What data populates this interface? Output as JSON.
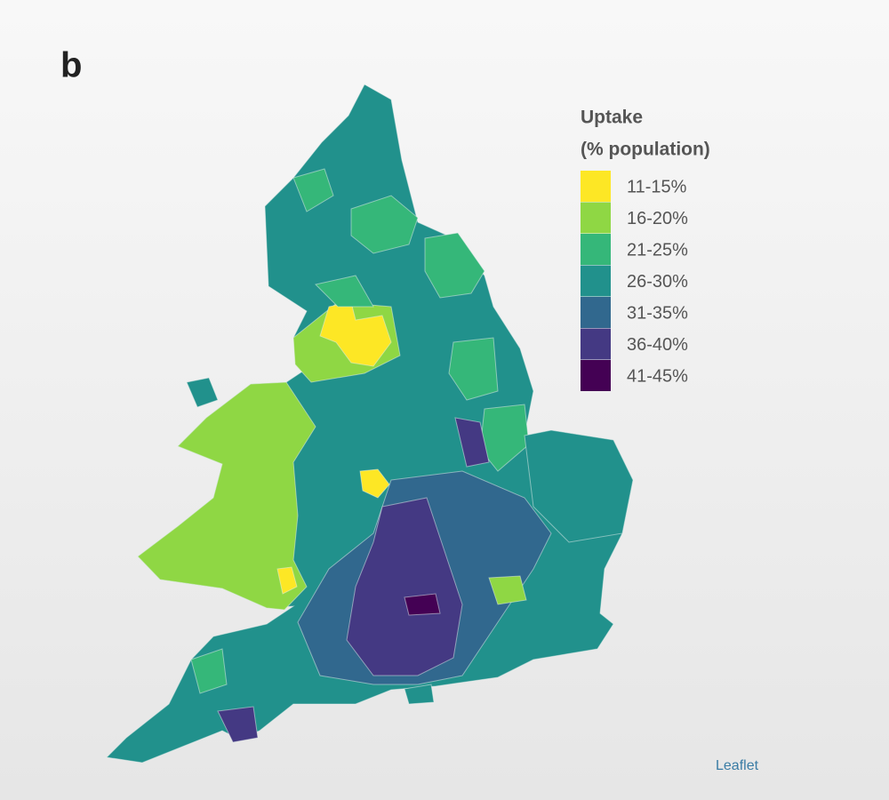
{
  "panel_label": "b",
  "legend": {
    "title": "Uptake",
    "subtitle": "(% population)",
    "items": [
      {
        "label": "11-15%",
        "color": "#fde725"
      },
      {
        "label": "16-20%",
        "color": "#8fd744"
      },
      {
        "label": "21-25%",
        "color": "#35b779"
      },
      {
        "label": "26-30%",
        "color": "#21918c"
      },
      {
        "label": "31-35%",
        "color": "#31688e"
      },
      {
        "label": "36-40%",
        "color": "#443983"
      },
      {
        "label": "41-45%",
        "color": "#440154"
      }
    ]
  },
  "attribution": "Leaflet"
}
